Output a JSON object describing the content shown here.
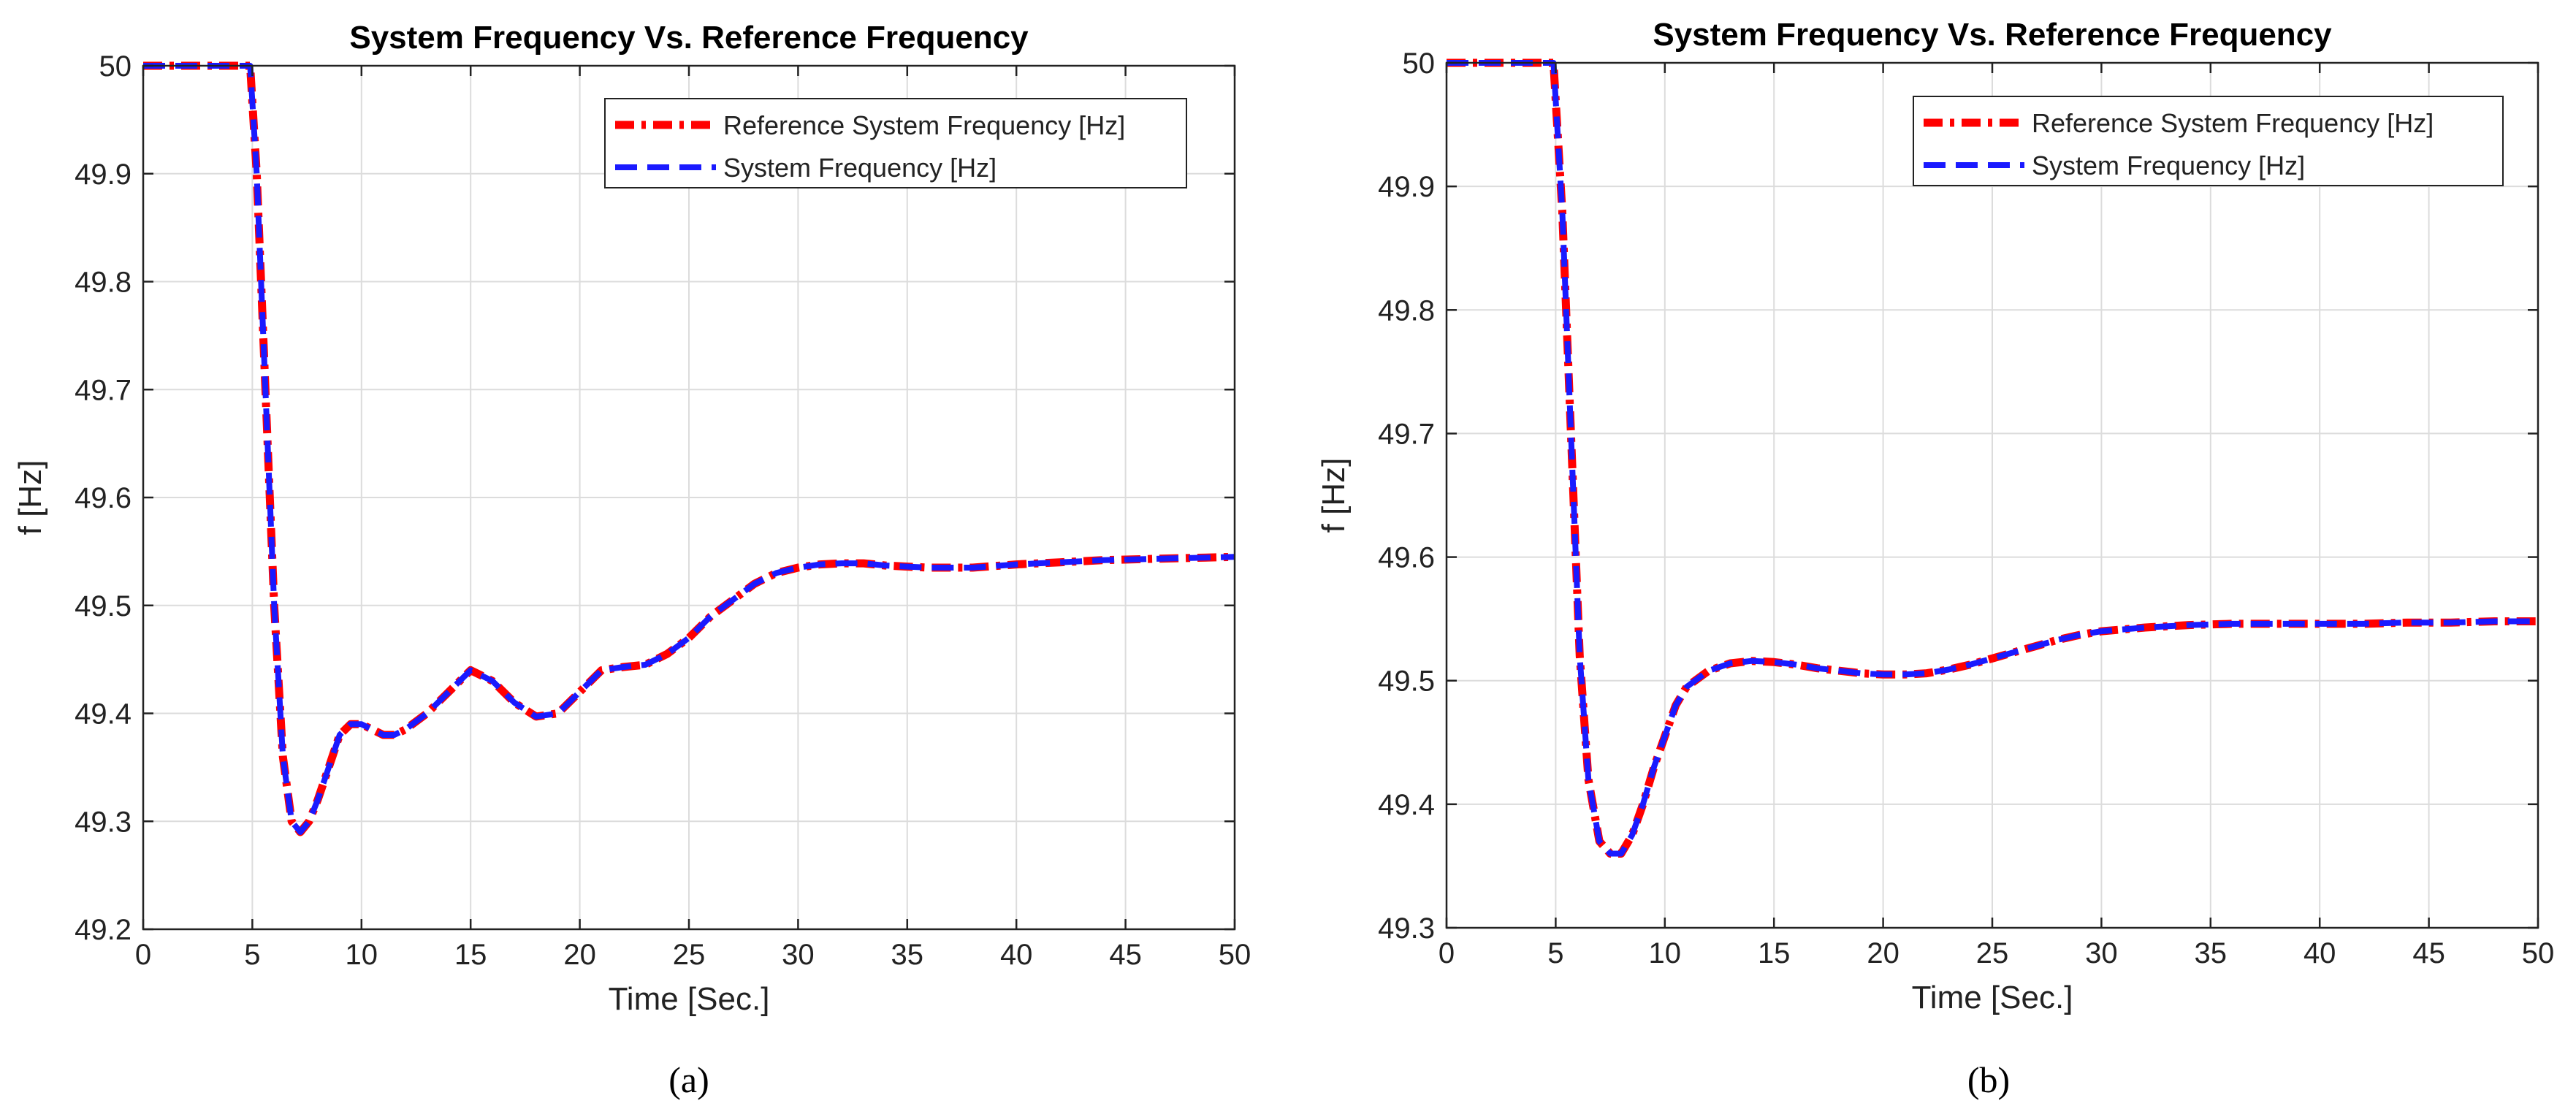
{
  "chart_data": [
    {
      "type": "line",
      "panel_label": "(a)",
      "title": "System Frequency Vs. Reference Frequency",
      "xlabel": "Time [Sec.]",
      "ylabel": "f [Hz]",
      "xlim": [
        0,
        50
      ],
      "ylim": [
        49.2,
        50
      ],
      "xticks": [
        0,
        5,
        10,
        15,
        20,
        25,
        30,
        35,
        40,
        45,
        50
      ],
      "xtick_labels": [
        "0",
        "5",
        "10",
        "15",
        "20",
        "25",
        "30",
        "35",
        "40",
        "45",
        "50"
      ],
      "yticks": [
        49.2,
        49.3,
        49.4,
        49.5,
        49.6,
        49.7,
        49.8,
        49.9,
        50
      ],
      "ytick_labels": [
        "49.2",
        "49.3",
        "49.4",
        "49.5",
        "49.6",
        "49.7",
        "49.8",
        "49.9",
        "50"
      ],
      "grid": true,
      "legend_position": "top-right",
      "series": [
        {
          "name": "Reference System Frequency [Hz]",
          "color": "#ff0000",
          "style": "dash-dot",
          "x": [
            0,
            4.9,
            5.2,
            5.6,
            6.0,
            6.4,
            6.8,
            7.2,
            7.6,
            8.0,
            8.5,
            9.0,
            9.5,
            10.0,
            10.5,
            11.0,
            11.5,
            12.0,
            13.0,
            14.0,
            15.0,
            16.0,
            17.0,
            18.0,
            19.0,
            20.0,
            21.0,
            22.0,
            23.0,
            24.0,
            25.0,
            26.0,
            27.0,
            28.0,
            29.0,
            30.0,
            31.0,
            32.0,
            33.0,
            34.0,
            35.0,
            36.0,
            37.0,
            38.0,
            40.0,
            42.0,
            44.0,
            46.0,
            48.0,
            50.0
          ],
          "y": [
            50.0,
            50.0,
            49.9,
            49.7,
            49.5,
            49.36,
            49.3,
            49.29,
            49.3,
            49.32,
            49.35,
            49.38,
            49.39,
            49.39,
            49.385,
            49.38,
            49.38,
            49.385,
            49.4,
            49.42,
            49.44,
            49.43,
            49.41,
            49.397,
            49.4,
            49.42,
            49.44,
            49.443,
            49.445,
            49.455,
            49.47,
            49.49,
            49.505,
            49.52,
            49.53,
            49.535,
            49.538,
            49.539,
            49.539,
            49.537,
            49.536,
            49.535,
            49.535,
            49.535,
            49.538,
            49.54,
            49.542,
            49.543,
            49.544,
            49.545
          ]
        },
        {
          "name": "System Frequency [Hz]",
          "color": "#1a1aff",
          "style": "dashed",
          "x": [
            0,
            4.9,
            5.2,
            5.6,
            6.0,
            6.4,
            6.8,
            7.2,
            7.6,
            8.0,
            8.5,
            9.0,
            9.5,
            10.0,
            10.5,
            11.0,
            11.5,
            12.0,
            13.0,
            14.0,
            15.0,
            16.0,
            17.0,
            18.0,
            19.0,
            20.0,
            21.0,
            22.0,
            23.0,
            24.0,
            25.0,
            26.0,
            27.0,
            28.0,
            29.0,
            30.0,
            31.0,
            32.0,
            33.0,
            34.0,
            35.0,
            36.0,
            37.0,
            38.0,
            40.0,
            42.0,
            44.0,
            46.0,
            48.0,
            50.0
          ],
          "y": [
            50.0,
            50.0,
            49.9,
            49.7,
            49.5,
            49.36,
            49.3,
            49.29,
            49.3,
            49.32,
            49.35,
            49.38,
            49.39,
            49.39,
            49.385,
            49.38,
            49.38,
            49.385,
            49.4,
            49.42,
            49.44,
            49.43,
            49.41,
            49.397,
            49.4,
            49.42,
            49.44,
            49.443,
            49.445,
            49.455,
            49.47,
            49.49,
            49.505,
            49.52,
            49.53,
            49.535,
            49.538,
            49.539,
            49.539,
            49.537,
            49.536,
            49.535,
            49.535,
            49.535,
            49.538,
            49.54,
            49.542,
            49.543,
            49.544,
            49.545
          ]
        }
      ]
    },
    {
      "type": "line",
      "panel_label": "(b)",
      "title": "System Frequency Vs. Reference Frequency",
      "xlabel": "Time [Sec.]",
      "ylabel": "f [Hz]",
      "xlim": [
        0,
        50
      ],
      "ylim": [
        49.3,
        50
      ],
      "xticks": [
        0,
        5,
        10,
        15,
        20,
        25,
        30,
        35,
        40,
        45,
        50
      ],
      "xtick_labels": [
        "0",
        "5",
        "10",
        "15",
        "20",
        "25",
        "30",
        "35",
        "40",
        "45",
        "50"
      ],
      "yticks": [
        49.3,
        49.4,
        49.5,
        49.6,
        49.7,
        49.8,
        49.9,
        50
      ],
      "ytick_labels": [
        "49.3",
        "49.4",
        "49.5",
        "49.6",
        "49.7",
        "49.8",
        "49.9",
        "50"
      ],
      "grid": true,
      "legend_position": "top-right",
      "series": [
        {
          "name": "Reference System Frequency [Hz]",
          "color": "#ff0000",
          "style": "dash-dot",
          "x": [
            0,
            4.9,
            5.3,
            5.7,
            6.1,
            6.5,
            7.0,
            7.5,
            8.0,
            8.5,
            9.0,
            9.5,
            10.0,
            10.5,
            11.0,
            12.0,
            13.0,
            14.0,
            15.0,
            16.0,
            17.0,
            18.0,
            19.0,
            20.0,
            21.0,
            22.0,
            23.0,
            24.0,
            25.0,
            26.0,
            27.0,
            28.0,
            29.0,
            30.0,
            32.0,
            34.0,
            36.0,
            38.0,
            40.0,
            42.0,
            44.0,
            46.0,
            48.0,
            50.0
          ],
          "y": [
            50.0,
            50.0,
            49.88,
            49.7,
            49.52,
            49.42,
            49.37,
            49.36,
            49.36,
            49.375,
            49.4,
            49.43,
            49.455,
            49.48,
            49.495,
            49.508,
            49.514,
            49.516,
            49.515,
            49.513,
            49.51,
            49.508,
            49.506,
            49.505,
            49.505,
            49.506,
            49.509,
            49.513,
            49.518,
            49.523,
            49.528,
            49.533,
            49.537,
            49.54,
            49.543,
            49.545,
            49.546,
            49.546,
            49.546,
            49.546,
            49.547,
            49.547,
            49.548,
            49.548
          ]
        },
        {
          "name": "System Frequency [Hz]",
          "color": "#1a1aff",
          "style": "dashed",
          "x": [
            0,
            4.9,
            5.3,
            5.7,
            6.1,
            6.5,
            7.0,
            7.5,
            8.0,
            8.5,
            9.0,
            9.5,
            10.0,
            10.5,
            11.0,
            12.0,
            13.0,
            14.0,
            15.0,
            16.0,
            17.0,
            18.0,
            19.0,
            20.0,
            21.0,
            22.0,
            23.0,
            24.0,
            25.0,
            26.0,
            27.0,
            28.0,
            29.0,
            30.0,
            32.0,
            34.0,
            36.0,
            38.0,
            40.0,
            42.0,
            44.0,
            46.0,
            48.0,
            50.0
          ],
          "y": [
            50.0,
            50.0,
            49.88,
            49.7,
            49.52,
            49.42,
            49.37,
            49.36,
            49.36,
            49.375,
            49.4,
            49.43,
            49.455,
            49.48,
            49.495,
            49.508,
            49.514,
            49.516,
            49.515,
            49.513,
            49.51,
            49.508,
            49.506,
            49.505,
            49.505,
            49.506,
            49.509,
            49.513,
            49.518,
            49.523,
            49.528,
            49.533,
            49.537,
            49.54,
            49.543,
            49.545,
            49.546,
            49.546,
            49.546,
            49.546,
            49.547,
            49.547,
            49.548,
            49.548
          ]
        }
      ]
    }
  ]
}
